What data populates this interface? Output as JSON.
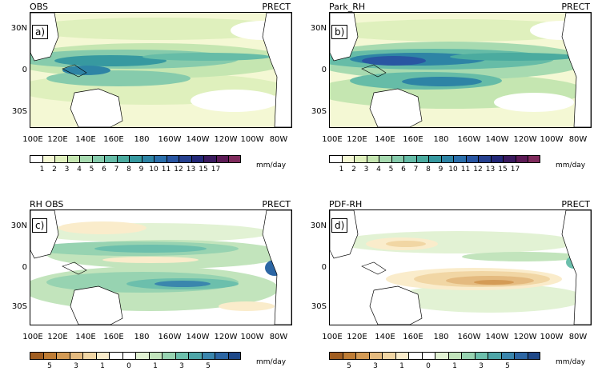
{
  "x_ticks": [
    "100E",
    "120E",
    "140E",
    "160E",
    "180",
    "160W",
    "140W",
    "120W",
    "100W",
    "80W"
  ],
  "y_ticks": [
    "30N",
    "0",
    "30S"
  ],
  "units": "mm/day",
  "colors": {
    "abs_scale": [
      "#ffffff",
      "#f4f8d4",
      "#dff0bd",
      "#c5e6b1",
      "#a7dab0",
      "#86cbac",
      "#66bca7",
      "#4bab9f",
      "#3799a0",
      "#2e84a5",
      "#2b6fab",
      "#2956a2",
      "#26408f",
      "#232878",
      "#3a1a5e",
      "#5c1a55",
      "#7f2a5c"
    ],
    "diff_scale": [
      "#a15e21",
      "#bf7d35",
      "#d49b55",
      "#e4ba7f",
      "#f1d6a4",
      "#faeccb",
      "#ffffff",
      "#ffffff",
      "#e2f2d4",
      "#c2e4bc",
      "#97d3b1",
      "#6cbfac",
      "#4ea6a8",
      "#3a86ad",
      "#2c66a4",
      "#1e4889"
    ]
  },
  "panels": [
    {
      "title": "OBS",
      "variable": "PRECT",
      "label": "a)",
      "colorbar_labels": [
        "1",
        "2",
        "3",
        "4",
        "5",
        "6",
        "7",
        "8",
        "9",
        "10",
        "11",
        "12",
        "13",
        "15",
        "17"
      ],
      "colorbar_units": "mm/day"
    },
    {
      "title": "Park_RH",
      "variable": "PRECT",
      "label": "b)",
      "colorbar_labels": [
        "1",
        "2",
        "3",
        "4",
        "5",
        "6",
        "7",
        "8",
        "9",
        "10",
        "11",
        "12",
        "13",
        "15",
        "17"
      ],
      "colorbar_units": "mm/day"
    },
    {
      "title": "RH OBS",
      "variable": "PRECT",
      "label": "c)",
      "colorbar_labels": [
        "5",
        "3",
        "1",
        "0",
        "1",
        "3",
        "5"
      ],
      "colorbar_units": "mm/day"
    },
    {
      "title": "PDF-RH",
      "variable": "PRECT",
      "label": "d)",
      "colorbar_labels": [
        "5",
        "3",
        "1",
        "0",
        "1",
        "3",
        "5"
      ],
      "colorbar_units": "mm/day"
    }
  ]
}
